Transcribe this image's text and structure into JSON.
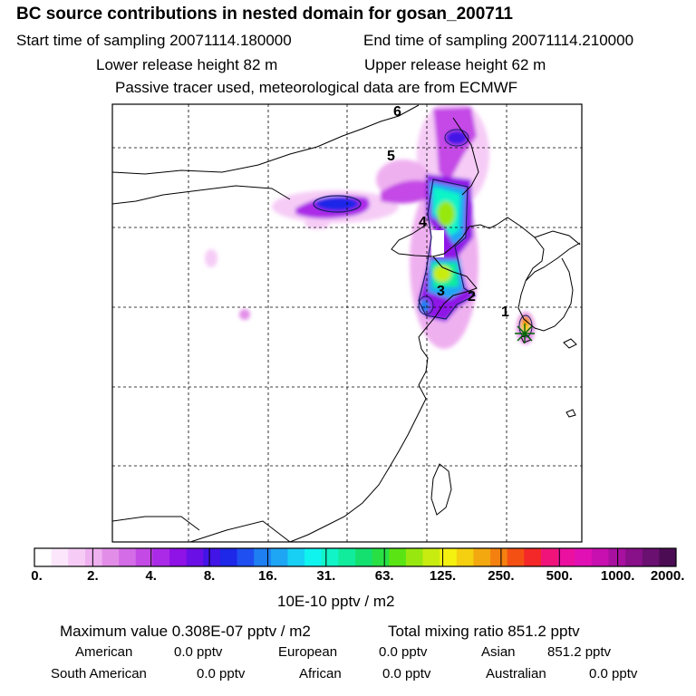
{
  "chart_data": {
    "type": "heatmap",
    "title": "BC  source contributions in nested domain for gosan_200711",
    "subtitle_lines": [
      {
        "label_start": "Start time of sampling 20071114.180000",
        "label_end": "End time of sampling 20071114.210000"
      },
      {
        "label_lower": "Lower release height   82 m",
        "label_upper": "Upper release height   62 m"
      },
      {
        "note": "Passive tracer used, meteorological data are from ECMWF"
      }
    ],
    "colorbar": {
      "unit": "10E-10 pptv / m2",
      "tick_labels": [
        "0.",
        "2.",
        "4.",
        "8.",
        "16.",
        "31.",
        "63.",
        "125.",
        "250.",
        "500.",
        "1000.",
        "2000."
      ],
      "colors": [
        "#ffffff",
        "#fbe6fb",
        "#f6ccf6",
        "#efb0f0",
        "#e28ee8",
        "#d36ce6",
        "#c44ae6",
        "#ab2ae8",
        "#8f12e6",
        "#6a10e6",
        "#4214e6",
        "#1e28e8",
        "#1f4ff0",
        "#1e7ff2",
        "#1ea6f4",
        "#18d0f4",
        "#10f4f0",
        "#10f4c8",
        "#10ec9c",
        "#14e070",
        "#28e044",
        "#5ae414",
        "#98e810",
        "#c8ec10",
        "#f4f010",
        "#f4d010",
        "#f4a810",
        "#f48010",
        "#f45014",
        "#f42828",
        "#f0147a",
        "#ec10a0",
        "#e010b4",
        "#c810b0",
        "#a810a0",
        "#881088",
        "#6a1070",
        "#4c0c54"
      ]
    },
    "domain_labels": [
      "1",
      "2",
      "3",
      "4",
      "5",
      "6"
    ],
    "receptor": "gosan",
    "summary": {
      "maximum": "Maximum value  0.308E-07 pptv / m2",
      "total": "Total mixing ratio       851.2 pptv",
      "american_label": "American",
      "american_value": "0.0 pptv",
      "european_label": "European",
      "european_value": "0.0 pptv",
      "asian_label": "Asian",
      "asian_value": "851.2 pptv",
      "south_american_label": "South American",
      "south_american_value": "0.0 pptv",
      "african_label": "African",
      "african_value": "0.0 pptv",
      "australian_label": "Australian",
      "australian_value": "0.0 pptv"
    }
  }
}
